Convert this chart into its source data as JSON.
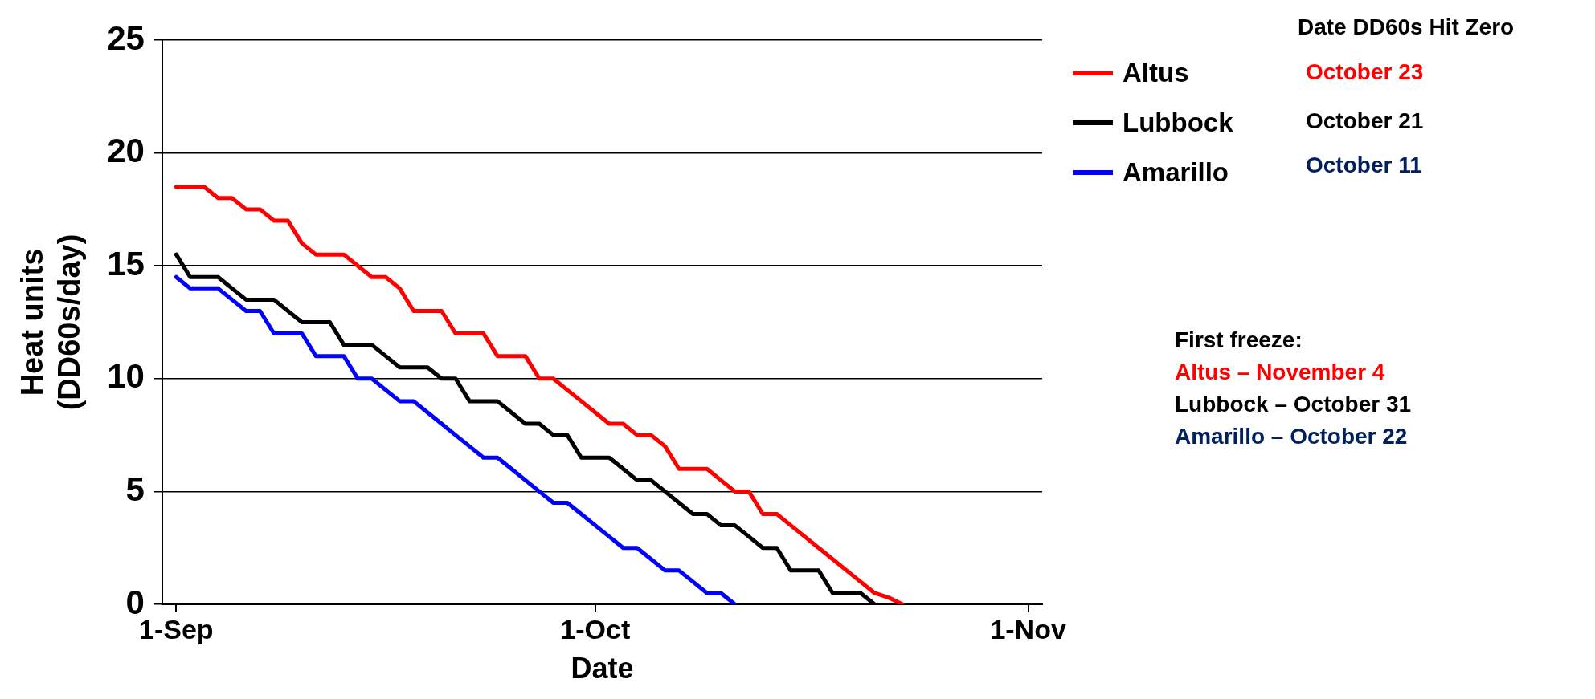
{
  "chart_data": {
    "type": "line",
    "xlabel": "Date",
    "ylabel": "Heat units\n(DD60s/day)",
    "xlim": [
      "--08-31",
      "--11-02"
    ],
    "xticks": [
      {
        "value": "--09-01",
        "label": "1-Sep"
      },
      {
        "value": "--10-01",
        "label": "1-Oct"
      },
      {
        "value": "--11-01",
        "label": "1-Nov"
      }
    ],
    "ylim": [
      0,
      25
    ],
    "yticks": [
      0,
      5,
      10,
      15,
      20,
      25
    ],
    "grid": "y",
    "legend": "right",
    "marker": "none",
    "line_style": "solid",
    "series": [
      {
        "name": "Altus",
        "color": "#ff0000",
        "x": [
          "--09-01",
          "--09-03",
          "--09-04",
          "--09-05",
          "--09-06",
          "--09-07",
          "--09-08",
          "--09-09",
          "--09-10",
          "--09-11",
          "--09-13",
          "--09-14",
          "--09-15",
          "--09-16",
          "--09-17",
          "--09-18",
          "--09-20",
          "--09-21",
          "--09-23",
          "--09-24",
          "--09-26",
          "--09-27",
          "--09-28",
          "--09-29",
          "--09-30",
          "--10-01",
          "--10-02",
          "--10-03",
          "--10-04",
          "--10-05",
          "--10-06",
          "--10-07",
          "--10-09",
          "--10-10",
          "--10-11",
          "--10-12",
          "--10-13",
          "--10-14",
          "--10-15",
          "--10-16",
          "--10-17",
          "--10-18",
          "--10-19",
          "--10-20",
          "--10-21",
          "--10-22",
          "--10-23"
        ],
        "values": [
          18.5,
          18.5,
          18,
          18,
          17.5,
          17.5,
          17,
          17,
          16,
          15.5,
          15.5,
          15,
          14.5,
          14.5,
          14,
          13,
          13,
          12,
          12,
          11,
          11,
          10,
          10,
          9.5,
          9,
          8.5,
          8,
          8,
          7.5,
          7.5,
          7,
          6,
          6,
          5.5,
          5,
          5,
          4,
          4,
          3.5,
          3,
          2.5,
          2,
          1.5,
          1,
          0.5,
          0.3,
          0
        ]
      },
      {
        "name": "Lubbock",
        "color": "#000000",
        "x": [
          "--09-01",
          "--09-02",
          "--09-04",
          "--09-05",
          "--09-06",
          "--09-08",
          "--09-09",
          "--09-10",
          "--09-12",
          "--09-13",
          "--09-15",
          "--09-16",
          "--09-17",
          "--09-19",
          "--09-20",
          "--09-21",
          "--09-22",
          "--09-24",
          "--09-25",
          "--09-26",
          "--09-27",
          "--09-28",
          "--09-29",
          "--09-30",
          "--10-02",
          "--10-03",
          "--10-04",
          "--10-05",
          "--10-06",
          "--10-07",
          "--10-08",
          "--10-09",
          "--10-10",
          "--10-11",
          "--10-12",
          "--10-13",
          "--10-14",
          "--10-15",
          "--10-17",
          "--10-18",
          "--10-20",
          "--10-21"
        ],
        "values": [
          15.5,
          14.5,
          14.5,
          14,
          13.5,
          13.5,
          13,
          12.5,
          12.5,
          11.5,
          11.5,
          11,
          10.5,
          10.5,
          10,
          10,
          9,
          9,
          8.5,
          8,
          8,
          7.5,
          7.5,
          6.5,
          6.5,
          6,
          5.5,
          5.5,
          5,
          4.5,
          4,
          4,
          3.5,
          3.5,
          3,
          2.5,
          2.5,
          1.5,
          1.5,
          0.5,
          0.5,
          0
        ]
      },
      {
        "name": "Amarillo",
        "color": "#0000ff",
        "x": [
          "--09-01",
          "--09-02",
          "--09-04",
          "--09-05",
          "--09-06",
          "--09-07",
          "--09-08",
          "--09-10",
          "--09-11",
          "--09-13",
          "--09-14",
          "--09-15",
          "--09-16",
          "--09-17",
          "--09-18",
          "--09-19",
          "--09-20",
          "--09-21",
          "--09-22",
          "--09-23",
          "--09-24",
          "--09-25",
          "--09-26",
          "--09-27",
          "--09-28",
          "--09-29",
          "--09-30",
          "--10-01",
          "--10-02",
          "--10-03",
          "--10-04",
          "--10-05",
          "--10-06",
          "--10-07",
          "--10-08",
          "--10-09",
          "--10-10",
          "--10-11"
        ],
        "values": [
          14.5,
          14,
          14,
          13.5,
          13,
          13,
          12,
          12,
          11,
          11,
          10,
          10,
          9.5,
          9,
          9,
          8.5,
          8,
          7.5,
          7,
          6.5,
          6.5,
          6,
          5.5,
          5,
          4.5,
          4.5,
          4,
          3.5,
          3,
          2.5,
          2.5,
          2,
          1.5,
          1.5,
          1,
          0.5,
          0.5,
          0
        ]
      }
    ],
    "annotations": [
      "Date DD60s Hit Zero",
      "October 23",
      "October 21",
      "October 11",
      "First freeze:",
      "Altus – November 4",
      "Lubbock – October 31",
      "Amarillo – October 22"
    ]
  }
}
